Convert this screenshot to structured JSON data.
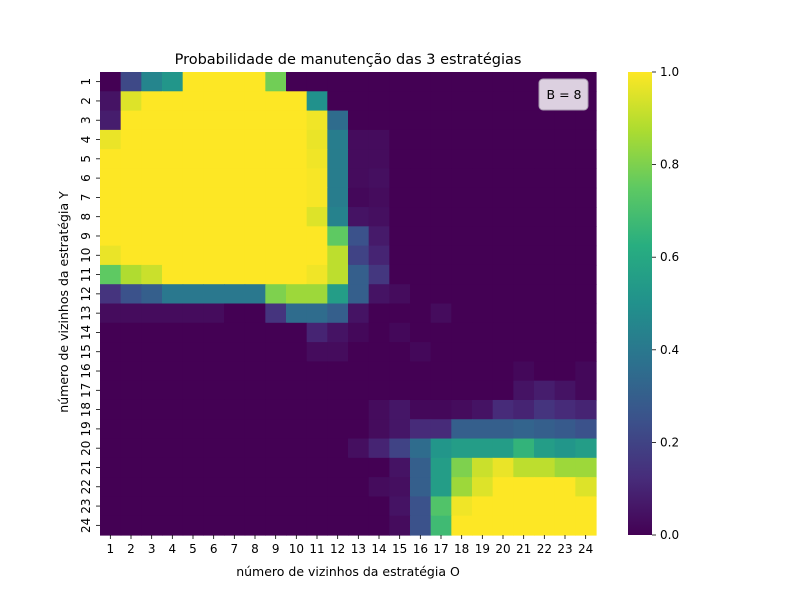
{
  "chart_data": {
    "type": "heatmap",
    "title": "Probabilidade de manutenção das 3 estratégias",
    "xlabel": "número de vizinhos da estratégia O",
    "ylabel": "número de vizinhos da estratégia Y",
    "x_categories": [
      "1",
      "2",
      "3",
      "4",
      "5",
      "6",
      "7",
      "8",
      "9",
      "10",
      "11",
      "12",
      "13",
      "14",
      "15",
      "16",
      "17",
      "18",
      "19",
      "20",
      "21",
      "22",
      "23",
      "24"
    ],
    "y_categories": [
      "1",
      "2",
      "3",
      "4",
      "5",
      "6",
      "7",
      "8",
      "9",
      "10",
      "11",
      "12",
      "13",
      "14",
      "15",
      "16",
      "17",
      "18",
      "19",
      "20",
      "21",
      "22",
      "23",
      "24"
    ],
    "values": [
      [
        0.0,
        0.22,
        0.45,
        0.52,
        1.0,
        1.0,
        1.0,
        1.0,
        0.78,
        0.0,
        0.0,
        0.0,
        0.0,
        0.0,
        0.0,
        0.0,
        0.0,
        0.0,
        0.0,
        0.0,
        0.0,
        0.0,
        0.0,
        0.0
      ],
      [
        0.05,
        0.95,
        1.0,
        1.0,
        1.0,
        1.0,
        1.0,
        1.0,
        1.0,
        1.0,
        0.5,
        0.0,
        0.0,
        0.0,
        0.0,
        0.0,
        0.0,
        0.0,
        0.0,
        0.0,
        0.0,
        0.0,
        0.0,
        0.0
      ],
      [
        0.08,
        1.0,
        1.0,
        1.0,
        1.0,
        1.0,
        1.0,
        1.0,
        1.0,
        1.0,
        0.98,
        0.35,
        0.0,
        0.0,
        0.0,
        0.0,
        0.0,
        0.0,
        0.0,
        0.0,
        0.0,
        0.0,
        0.0,
        0.0
      ],
      [
        0.97,
        1.0,
        1.0,
        1.0,
        1.0,
        1.0,
        1.0,
        1.0,
        1.0,
        1.0,
        0.97,
        0.42,
        0.03,
        0.03,
        0.0,
        0.0,
        0.0,
        0.0,
        0.0,
        0.0,
        0.0,
        0.0,
        0.0,
        0.0
      ],
      [
        1.0,
        1.0,
        1.0,
        1.0,
        1.0,
        1.0,
        1.0,
        1.0,
        1.0,
        1.0,
        0.98,
        0.42,
        0.03,
        0.03,
        0.0,
        0.0,
        0.0,
        0.0,
        0.0,
        0.0,
        0.0,
        0.0,
        0.0,
        0.0
      ],
      [
        1.0,
        1.0,
        1.0,
        1.0,
        1.0,
        1.0,
        1.0,
        1.0,
        1.0,
        1.0,
        0.99,
        0.42,
        0.03,
        0.04,
        0.0,
        0.0,
        0.0,
        0.0,
        0.0,
        0.0,
        0.0,
        0.0,
        0.0,
        0.0
      ],
      [
        1.0,
        1.0,
        1.0,
        1.0,
        1.0,
        1.0,
        1.0,
        1.0,
        1.0,
        1.0,
        0.99,
        0.42,
        0.02,
        0.03,
        0.0,
        0.0,
        0.0,
        0.0,
        0.0,
        0.0,
        0.0,
        0.0,
        0.0,
        0.0
      ],
      [
        1.0,
        1.0,
        1.0,
        1.0,
        1.0,
        1.0,
        1.0,
        1.0,
        1.0,
        1.0,
        0.95,
        0.44,
        0.05,
        0.04,
        0.0,
        0.0,
        0.0,
        0.0,
        0.0,
        0.0,
        0.0,
        0.0,
        0.0,
        0.0
      ],
      [
        1.0,
        1.0,
        1.0,
        1.0,
        1.0,
        1.0,
        1.0,
        1.0,
        1.0,
        1.0,
        1.0,
        0.75,
        0.25,
        0.07,
        0.0,
        0.0,
        0.0,
        0.0,
        0.0,
        0.0,
        0.0,
        0.0,
        0.0,
        0.0
      ],
      [
        0.97,
        1.0,
        1.0,
        1.0,
        1.0,
        1.0,
        1.0,
        1.0,
        1.0,
        1.0,
        1.0,
        0.9,
        0.2,
        0.1,
        0.0,
        0.0,
        0.0,
        0.0,
        0.0,
        0.0,
        0.0,
        0.0,
        0.0,
        0.0
      ],
      [
        0.75,
        0.88,
        0.92,
        1.0,
        1.0,
        1.0,
        1.0,
        1.0,
        1.0,
        1.0,
        0.98,
        0.9,
        0.3,
        0.16,
        0.0,
        0.0,
        0.0,
        0.0,
        0.0,
        0.0,
        0.0,
        0.0,
        0.0,
        0.0
      ],
      [
        0.15,
        0.25,
        0.3,
        0.4,
        0.4,
        0.4,
        0.4,
        0.4,
        0.8,
        0.85,
        0.85,
        0.55,
        0.3,
        0.05,
        0.03,
        0.0,
        0.0,
        0.0,
        0.0,
        0.0,
        0.0,
        0.0,
        0.0,
        0.0
      ],
      [
        0.03,
        0.03,
        0.03,
        0.03,
        0.03,
        0.03,
        0.0,
        0.0,
        0.15,
        0.35,
        0.35,
        0.3,
        0.05,
        0.0,
        0.0,
        0.0,
        0.03,
        0.0,
        0.0,
        0.0,
        0.0,
        0.0,
        0.0,
        0.0
      ],
      [
        0.0,
        0.0,
        0.0,
        0.0,
        0.0,
        0.0,
        0.0,
        0.0,
        0.0,
        0.0,
        0.1,
        0.05,
        0.02,
        0.0,
        0.02,
        0.0,
        0.0,
        0.0,
        0.0,
        0.0,
        0.0,
        0.0,
        0.0,
        0.0
      ],
      [
        0.0,
        0.0,
        0.0,
        0.0,
        0.0,
        0.0,
        0.0,
        0.0,
        0.0,
        0.0,
        0.03,
        0.03,
        0.0,
        0.0,
        0.0,
        0.02,
        0.0,
        0.0,
        0.0,
        0.0,
        0.0,
        0.0,
        0.0,
        0.0
      ],
      [
        0.0,
        0.0,
        0.0,
        0.0,
        0.0,
        0.0,
        0.0,
        0.0,
        0.0,
        0.0,
        0.0,
        0.0,
        0.0,
        0.0,
        0.0,
        0.0,
        0.0,
        0.0,
        0.0,
        0.0,
        0.02,
        0.0,
        0.0,
        0.02
      ],
      [
        0.0,
        0.0,
        0.0,
        0.0,
        0.0,
        0.0,
        0.0,
        0.0,
        0.0,
        0.0,
        0.0,
        0.0,
        0.0,
        0.0,
        0.0,
        0.0,
        0.0,
        0.0,
        0.0,
        0.0,
        0.05,
        0.08,
        0.05,
        0.02
      ],
      [
        0.0,
        0.0,
        0.0,
        0.0,
        0.0,
        0.0,
        0.0,
        0.0,
        0.0,
        0.0,
        0.0,
        0.0,
        0.0,
        0.03,
        0.06,
        0.02,
        0.02,
        0.03,
        0.05,
        0.12,
        0.1,
        0.15,
        0.12,
        0.1
      ],
      [
        0.0,
        0.0,
        0.0,
        0.0,
        0.0,
        0.0,
        0.0,
        0.0,
        0.0,
        0.0,
        0.0,
        0.0,
        0.0,
        0.03,
        0.06,
        0.12,
        0.12,
        0.3,
        0.3,
        0.3,
        0.32,
        0.3,
        0.28,
        0.25
      ],
      [
        0.0,
        0.0,
        0.0,
        0.0,
        0.0,
        0.0,
        0.0,
        0.0,
        0.0,
        0.0,
        0.0,
        0.0,
        0.04,
        0.1,
        0.2,
        0.35,
        0.52,
        0.55,
        0.55,
        0.55,
        0.65,
        0.55,
        0.52,
        0.55
      ],
      [
        0.0,
        0.0,
        0.0,
        0.0,
        0.0,
        0.0,
        0.0,
        0.0,
        0.0,
        0.0,
        0.0,
        0.0,
        0.0,
        0.0,
        0.05,
        0.3,
        0.55,
        0.8,
        0.92,
        0.97,
        0.9,
        0.9,
        0.85,
        0.85
      ],
      [
        0.0,
        0.0,
        0.0,
        0.0,
        0.0,
        0.0,
        0.0,
        0.0,
        0.0,
        0.0,
        0.0,
        0.0,
        0.0,
        0.03,
        0.04,
        0.3,
        0.55,
        0.85,
        0.95,
        1.0,
        1.0,
        1.0,
        1.0,
        0.95
      ],
      [
        0.0,
        0.0,
        0.0,
        0.0,
        0.0,
        0.0,
        0.0,
        0.0,
        0.0,
        0.0,
        0.0,
        0.0,
        0.0,
        0.0,
        0.05,
        0.25,
        0.72,
        0.98,
        1.0,
        1.0,
        1.0,
        1.0,
        1.0,
        1.0
      ],
      [
        0.0,
        0.0,
        0.0,
        0.0,
        0.0,
        0.0,
        0.0,
        0.0,
        0.0,
        0.0,
        0.0,
        0.0,
        0.0,
        0.0,
        0.03,
        0.25,
        0.68,
        1.0,
        1.0,
        1.0,
        1.0,
        1.0,
        1.0,
        1.0
      ]
    ],
    "vmin": 0.0,
    "vmax": 1.0,
    "colormap": "viridis",
    "colorbar_ticks": [
      "0.0",
      "0.2",
      "0.4",
      "0.6",
      "0.8",
      "1.0"
    ],
    "colorbar_tick_values": [
      0.0,
      0.2,
      0.4,
      0.6,
      0.8,
      1.0
    ],
    "annotation": "B = 8",
    "annotation_placement": "top-right",
    "annotation_bg": "#dcd0e0",
    "grid": false
  }
}
